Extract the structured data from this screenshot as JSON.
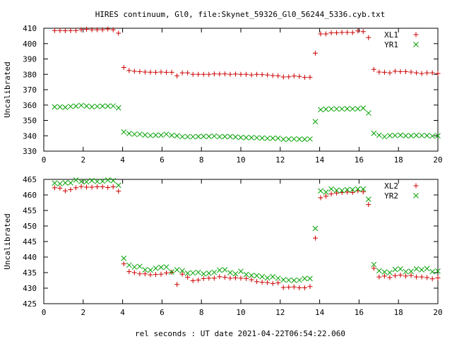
{
  "title": "HIRES continuum, Gl0, file:Skynet_59326_Gl0_56244_5336.cyb.txt",
  "xlabel": "rel seconds : UT date 2021-04-22T06:54:22.060",
  "colors": {
    "red_series": "#cc0000",
    "green_series": "#00a000",
    "axes": "#000000",
    "grid": "#888888"
  },
  "chart_data": [
    {
      "type": "scatter",
      "ylabel": "Uncalibrated",
      "xlim": [
        0,
        20
      ],
      "ylim": [
        330,
        410
      ],
      "xticks": [
        0,
        2,
        4,
        6,
        8,
        10,
        12,
        14,
        16,
        18,
        20
      ],
      "yticks": [
        330,
        340,
        350,
        360,
        370,
        380,
        390,
        400,
        410
      ],
      "grid": true,
      "legend": "top-right",
      "series": [
        {
          "name": "XL1",
          "marker": "+",
          "color": "#cc0000",
          "x": [
            0.55,
            0.82,
            1.09,
            1.36,
            1.63,
            1.9,
            2.17,
            2.44,
            2.71,
            2.98,
            3.25,
            3.52,
            3.79,
            4.06,
            4.33,
            4.6,
            4.87,
            5.14,
            5.41,
            5.68,
            5.95,
            6.22,
            6.49,
            6.76,
            7.03,
            7.3,
            7.57,
            7.84,
            8.11,
            8.38,
            8.65,
            8.92,
            9.19,
            9.46,
            9.73,
            10.0,
            10.27,
            10.54,
            10.81,
            11.08,
            11.35,
            11.62,
            11.89,
            12.16,
            12.43,
            12.7,
            12.97,
            13.24,
            13.51,
            13.78,
            14.05,
            14.32,
            14.59,
            14.86,
            15.13,
            15.4,
            15.67,
            15.94,
            16.21,
            16.48,
            16.75,
            17.02,
            17.29,
            17.56,
            17.83,
            18.1,
            18.37,
            18.64,
            18.91,
            19.18,
            19.45,
            19.72,
            20.0
          ],
          "y": [
            408.5,
            408.5,
            408.4,
            408.5,
            408.5,
            409.0,
            409.3,
            409.0,
            409.0,
            409.0,
            409.5,
            409.0,
            406.8,
            384.5,
            382.5,
            382.0,
            381.8,
            381.5,
            381.4,
            381.3,
            381.5,
            381.3,
            381.3,
            379.0,
            381.0,
            381.0,
            380.0,
            380.0,
            380.0,
            380.0,
            380.3,
            380.2,
            380.3,
            380.0,
            380.2,
            380.0,
            380.0,
            379.6,
            380.0,
            379.8,
            379.6,
            379.2,
            379.0,
            378.3,
            378.4,
            378.9,
            378.6,
            378.0,
            378.1,
            393.8,
            406.3,
            406.3,
            407.0,
            407.0,
            407.3,
            407.3,
            407.2,
            408.3,
            407.8,
            403.9,
            383.2,
            381.5,
            381.3,
            381.0,
            382.0,
            381.8,
            381.8,
            381.5,
            381.0,
            380.5,
            381.0,
            381.0,
            380.6
          ]
        },
        {
          "name": "YR1",
          "marker": "x",
          "color": "#00a000",
          "x": [
            0.55,
            0.82,
            1.09,
            1.36,
            1.63,
            1.9,
            2.17,
            2.44,
            2.71,
            2.98,
            3.25,
            3.52,
            3.79,
            4.06,
            4.33,
            4.6,
            4.87,
            5.14,
            5.41,
            5.68,
            5.95,
            6.22,
            6.49,
            6.76,
            7.03,
            7.3,
            7.57,
            7.84,
            8.11,
            8.38,
            8.65,
            8.92,
            9.19,
            9.46,
            9.73,
            10.0,
            10.27,
            10.54,
            10.81,
            11.08,
            11.35,
            11.62,
            11.89,
            12.16,
            12.43,
            12.7,
            12.97,
            13.24,
            13.51,
            13.78,
            14.05,
            14.32,
            14.59,
            14.86,
            15.13,
            15.4,
            15.67,
            15.94,
            16.21,
            16.48,
            16.75,
            17.02,
            17.29,
            17.56,
            17.83,
            18.1,
            18.37,
            18.64,
            18.91,
            19.18,
            19.45,
            19.72,
            20.0
          ],
          "y": [
            358.8,
            358.8,
            358.5,
            359.1,
            359.3,
            359.8,
            359.3,
            358.9,
            359.1,
            359.3,
            359.3,
            359.4,
            358.2,
            342.5,
            341.5,
            341.0,
            341.0,
            340.5,
            340.2,
            340.4,
            340.4,
            341.0,
            340.3,
            340.0,
            339.4,
            339.4,
            339.4,
            339.5,
            339.6,
            339.6,
            339.8,
            339.4,
            339.5,
            339.5,
            339.2,
            338.9,
            338.8,
            338.8,
            338.7,
            338.5,
            338.3,
            338.4,
            338.4,
            337.7,
            337.8,
            337.9,
            337.8,
            337.7,
            337.9,
            349.2,
            357.0,
            357.3,
            357.5,
            357.5,
            357.5,
            357.6,
            357.5,
            357.6,
            358.0,
            354.8,
            341.6,
            340.4,
            339.4,
            340.1,
            340.2,
            340.4,
            340.0,
            340.0,
            340.3,
            340.2,
            340.1,
            339.8,
            340.0
          ]
        }
      ]
    },
    {
      "type": "scatter",
      "ylabel": "Uncalibrated",
      "xlim": [
        0,
        20
      ],
      "ylim": [
        425,
        465
      ],
      "xticks": [
        0,
        2,
        4,
        6,
        8,
        10,
        12,
        14,
        16,
        18,
        20
      ],
      "yticks": [
        425,
        430,
        435,
        440,
        445,
        450,
        455,
        460,
        465
      ],
      "grid": true,
      "legend": "top-right",
      "series": [
        {
          "name": "XL2",
          "marker": "+",
          "color": "#cc0000",
          "x": [
            0.55,
            0.82,
            1.09,
            1.36,
            1.63,
            1.9,
            2.17,
            2.44,
            2.71,
            2.98,
            3.25,
            3.52,
            3.79,
            4.06,
            4.33,
            4.6,
            4.87,
            5.14,
            5.41,
            5.68,
            5.95,
            6.22,
            6.49,
            6.76,
            7.03,
            7.3,
            7.57,
            7.84,
            8.11,
            8.38,
            8.65,
            8.92,
            9.19,
            9.46,
            9.73,
            10.0,
            10.27,
            10.54,
            10.81,
            11.08,
            11.35,
            11.62,
            11.89,
            12.16,
            12.43,
            12.7,
            12.97,
            13.24,
            13.51,
            13.78,
            14.05,
            14.32,
            14.59,
            14.86,
            15.13,
            15.4,
            15.67,
            15.94,
            16.21,
            16.48,
            16.75,
            17.02,
            17.29,
            17.56,
            17.83,
            18.1,
            18.37,
            18.64,
            18.91,
            19.18,
            19.45,
            19.72,
            20.0
          ],
          "y": [
            462.3,
            462.2,
            461.3,
            461.7,
            462.3,
            462.7,
            462.5,
            462.5,
            462.6,
            462.6,
            462.4,
            462.6,
            461.2,
            437.8,
            435.3,
            435.0,
            434.6,
            434.6,
            434.3,
            434.4,
            434.5,
            434.9,
            435.1,
            431.2,
            434.5,
            433.5,
            432.4,
            432.6,
            433.1,
            433.2,
            433.2,
            433.7,
            433.5,
            433.2,
            433.3,
            433.2,
            433.1,
            432.7,
            432.1,
            431.9,
            431.8,
            431.5,
            431.7,
            430.2,
            430.3,
            430.4,
            430.1,
            430.1,
            430.5,
            446.1,
            459.1,
            459.6,
            460.3,
            460.6,
            460.8,
            460.9,
            460.8,
            461.3,
            461.0,
            456.9,
            436.4,
            433.6,
            433.9,
            433.4,
            434.0,
            434.2,
            433.9,
            434.1,
            433.6,
            433.6,
            433.4,
            433.0,
            433.3
          ]
        },
        {
          "name": "YR2",
          "marker": "x",
          "color": "#00a000",
          "x": [
            0.55,
            0.82,
            1.09,
            1.36,
            1.63,
            1.9,
            2.17,
            2.44,
            2.71,
            2.98,
            3.25,
            3.52,
            3.79,
            4.06,
            4.33,
            4.6,
            4.87,
            5.14,
            5.41,
            5.68,
            5.95,
            6.22,
            6.49,
            6.76,
            7.03,
            7.3,
            7.57,
            7.84,
            8.11,
            8.38,
            8.65,
            8.92,
            9.19,
            9.46,
            9.73,
            10.0,
            10.27,
            10.54,
            10.81,
            11.08,
            11.35,
            11.62,
            11.89,
            12.16,
            12.43,
            12.7,
            12.97,
            13.24,
            13.51,
            13.78,
            14.05,
            14.32,
            14.59,
            14.86,
            15.13,
            15.4,
            15.67,
            15.94,
            16.21,
            16.48,
            16.75,
            17.02,
            17.29,
            17.56,
            17.83,
            18.1,
            18.37,
            18.64,
            18.91,
            19.18,
            19.45,
            19.72,
            20.0
          ],
          "y": [
            463.8,
            463.6,
            463.9,
            463.9,
            464.8,
            464.3,
            464.2,
            464.6,
            464.3,
            464.4,
            464.8,
            464.6,
            463.1,
            439.6,
            437.4,
            436.8,
            437.0,
            435.9,
            435.8,
            436.4,
            436.7,
            436.8,
            435.2,
            435.9,
            435.6,
            434.8,
            434.9,
            435.1,
            434.6,
            434.8,
            435.1,
            435.8,
            435.9,
            435.0,
            434.6,
            435.4,
            434.4,
            434.1,
            434.0,
            433.7,
            433.3,
            433.7,
            433.2,
            432.7,
            432.6,
            432.5,
            432.6,
            433.1,
            433.1,
            449.2,
            461.3,
            460.9,
            461.9,
            461.5,
            461.4,
            461.7,
            461.7,
            461.9,
            461.9,
            458.6,
            437.6,
            435.6,
            435.2,
            435.0,
            436.0,
            436.2,
            435.3,
            435.4,
            436.2,
            435.9,
            436.3,
            435.3,
            435.5
          ]
        }
      ]
    }
  ]
}
